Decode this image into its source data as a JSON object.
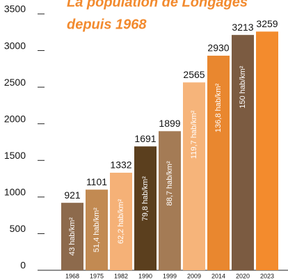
{
  "chart_data": {
    "type": "bar",
    "title": "La population de Longages",
    "subtitle": "depuis 1968",
    "categories": [
      "1968",
      "1975",
      "1982",
      "1990",
      "1999",
      "2009",
      "2014",
      "2020",
      "2023"
    ],
    "values": [
      921,
      1101,
      1332,
      1691,
      1899,
      2565,
      2930,
      3213,
      3259
    ],
    "density_labels": [
      "43 hab/km²",
      "51,4 hab/km²",
      "62,2 hab/km²",
      "79,8 hab/km²",
      "88,7 hab/km²",
      "119,7 hab/km²",
      "136,8 hab/km²",
      "150 hab/km²",
      null
    ],
    "colors": [
      "#8d6a4c",
      "#c28a52",
      "#f5b177",
      "#5b3f1e",
      "#a47b55",
      "#f6b47a",
      "#e9872f",
      "#7b5b41",
      "#f38b2d"
    ],
    "ylim": [
      0,
      3500
    ],
    "yticks": [
      0,
      500,
      1000,
      1500,
      2000,
      2500,
      3000,
      3500
    ]
  }
}
